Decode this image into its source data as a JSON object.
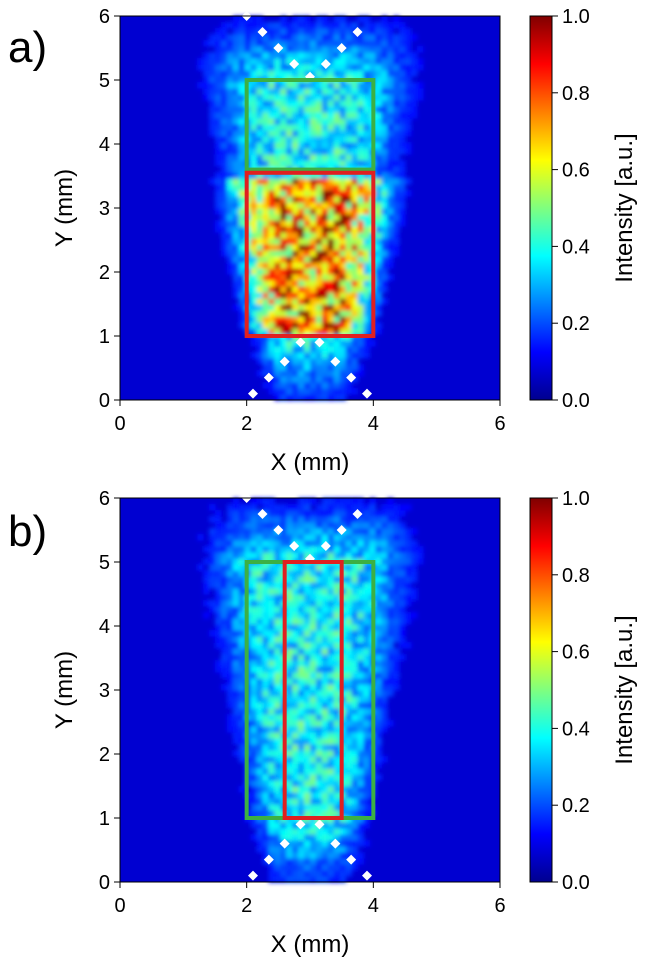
{
  "chart_data": [
    {
      "type": "heatmap",
      "panel_label": "a)",
      "xlabel": "X (mm)",
      "ylabel": "Y (mm)",
      "xlim": [
        0,
        6
      ],
      "ylim": [
        0,
        6
      ],
      "x_ticks": [
        0,
        2,
        4,
        6
      ],
      "y_ticks": [
        0,
        1,
        2,
        3,
        4,
        5,
        6
      ],
      "colorbar": {
        "label": "Intensity [a.u.]",
        "range": [
          0.0,
          1.0
        ],
        "ticks": [
          "0.0",
          "0.2",
          "0.4",
          "0.6",
          "0.8",
          "1.0"
        ],
        "colormap": "jet"
      },
      "roi_boxes": [
        {
          "color": "#3cb043",
          "x": [
            2.0,
            4.0
          ],
          "y": [
            3.6,
            5.0
          ]
        },
        {
          "color": "#e02020",
          "x": [
            2.0,
            4.0
          ],
          "y": [
            1.0,
            3.55
          ]
        }
      ],
      "intensity_profile": {
        "x_center": 3.0,
        "core_y": [
          1.0,
          3.5
        ],
        "core_peak": 0.7,
        "upper_y": [
          3.5,
          5.0
        ],
        "upper_peak": 0.3
      },
      "marker_color": "#ffffff"
    },
    {
      "type": "heatmap",
      "panel_label": "b)",
      "xlabel": "X (mm)",
      "ylabel": "Y (mm)",
      "xlim": [
        0,
        6
      ],
      "ylim": [
        0,
        6
      ],
      "x_ticks": [
        0,
        2,
        4,
        6
      ],
      "y_ticks": [
        0,
        1,
        2,
        3,
        4,
        5,
        6
      ],
      "colorbar": {
        "label": "Intensity [a.u.]",
        "range": [
          0.0,
          1.0
        ],
        "ticks": [
          "0.0",
          "0.2",
          "0.4",
          "0.6",
          "0.8",
          "1.0"
        ],
        "colormap": "jet"
      },
      "roi_boxes": [
        {
          "color": "#3cb043",
          "x": [
            2.0,
            4.0
          ],
          "y": [
            1.0,
            5.0
          ]
        },
        {
          "color": "#e02020",
          "x": [
            2.6,
            3.5
          ],
          "y": [
            1.0,
            5.0
          ]
        }
      ],
      "intensity_profile": {
        "x_center": 3.0,
        "core_y": [
          1.0,
          5.0
        ],
        "core_peak": 0.3,
        "upper_y": [
          1.0,
          5.0
        ],
        "upper_peak": 0.3
      },
      "marker_color": "#ffffff"
    }
  ]
}
